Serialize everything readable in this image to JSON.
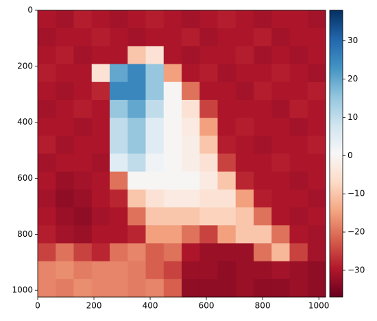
{
  "chart_data": {
    "type": "heatmap",
    "cmap": "RdBu",
    "xlim": [
      0,
      1024
    ],
    "ylim": [
      1024,
      0
    ],
    "xticks": [
      0,
      200,
      400,
      600,
      800,
      1000
    ],
    "yticks": [
      0,
      200,
      400,
      600,
      800,
      1000
    ],
    "values": [
      [
        -30,
        -31,
        -29,
        -30,
        -31,
        -30,
        -29,
        -30,
        -31,
        -30,
        -29,
        -30,
        -31,
        -30,
        -30,
        -31
      ],
      [
        -31,
        -30,
        -30,
        -29,
        -30,
        -31,
        -30,
        -30,
        -29,
        -31,
        -30,
        -30,
        -29,
        -31,
        -30,
        -30
      ],
      [
        -30,
        -29,
        -31,
        -30,
        -30,
        -10,
        -5,
        -30,
        -31,
        -30,
        -30,
        -29,
        -31,
        -30,
        -31,
        -30
      ],
      [
        -29,
        -30,
        -30,
        -5,
        20,
        25,
        15,
        -15,
        -30,
        -29,
        -31,
        -30,
        -30,
        -29,
        -30,
        -31
      ],
      [
        -30,
        -31,
        -30,
        -28,
        25,
        25,
        15,
        0,
        -20,
        -30,
        -30,
        -31,
        -29,
        -30,
        -30,
        -29
      ],
      [
        -31,
        -30,
        -29,
        -30,
        15,
        20,
        10,
        0,
        -5,
        -25,
        -30,
        -30,
        -30,
        -31,
        -29,
        -30
      ],
      [
        -30,
        -30,
        -31,
        -30,
        10,
        15,
        5,
        0,
        -3,
        -15,
        -30,
        -29,
        -30,
        -30,
        -31,
        -30
      ],
      [
        -29,
        -31,
        -30,
        -30,
        10,
        15,
        5,
        0,
        -2,
        -10,
        -29,
        -30,
        -31,
        -30,
        -30,
        -29
      ],
      [
        -31,
        -30,
        -30,
        -31,
        5,
        10,
        2,
        0,
        -2,
        -5,
        -25,
        -30,
        -30,
        -29,
        -30,
        -30
      ],
      [
        -30,
        -32,
        -31,
        -30,
        -20,
        0,
        0,
        0,
        0,
        -3,
        -10,
        -28,
        -30,
        -30,
        -31,
        -30
      ],
      [
        -31,
        -33,
        -32,
        -30,
        -28,
        -10,
        -5,
        -3,
        -3,
        -5,
        -5,
        -15,
        -29,
        -30,
        -30,
        -31
      ],
      [
        -30,
        -32,
        -33,
        -31,
        -30,
        -20,
        -10,
        -10,
        -10,
        -8,
        -8,
        -10,
        -20,
        -30,
        -31,
        -30
      ],
      [
        -29,
        -31,
        -32,
        -30,
        -30,
        -28,
        -15,
        -15,
        -20,
        -25,
        -15,
        -10,
        -10,
        -20,
        -30,
        -31
      ],
      [
        -25,
        -20,
        -25,
        -28,
        -20,
        -18,
        -22,
        -20,
        -30,
        -32,
        -32,
        -32,
        -20,
        -12,
        -25,
        -31
      ],
      [
        -18,
        -17,
        -19,
        -18,
        -18,
        -19,
        -22,
        -25,
        -32,
        -32,
        -33,
        -32,
        -32,
        -31,
        -32,
        -33
      ],
      [
        -18,
        -19,
        -17,
        -18,
        -18,
        -19,
        -18,
        -22,
        -33,
        -33,
        -33,
        -32,
        -33,
        -33,
        -32,
        -33
      ]
    ],
    "colorbar": {
      "lim": [
        -37,
        38
      ],
      "ticks": [
        {
          "value": -30,
          "label": "−30"
        },
        {
          "value": -20,
          "label": "−20"
        },
        {
          "value": -10,
          "label": "−10"
        },
        0,
        10,
        20,
        30
      ]
    }
  }
}
